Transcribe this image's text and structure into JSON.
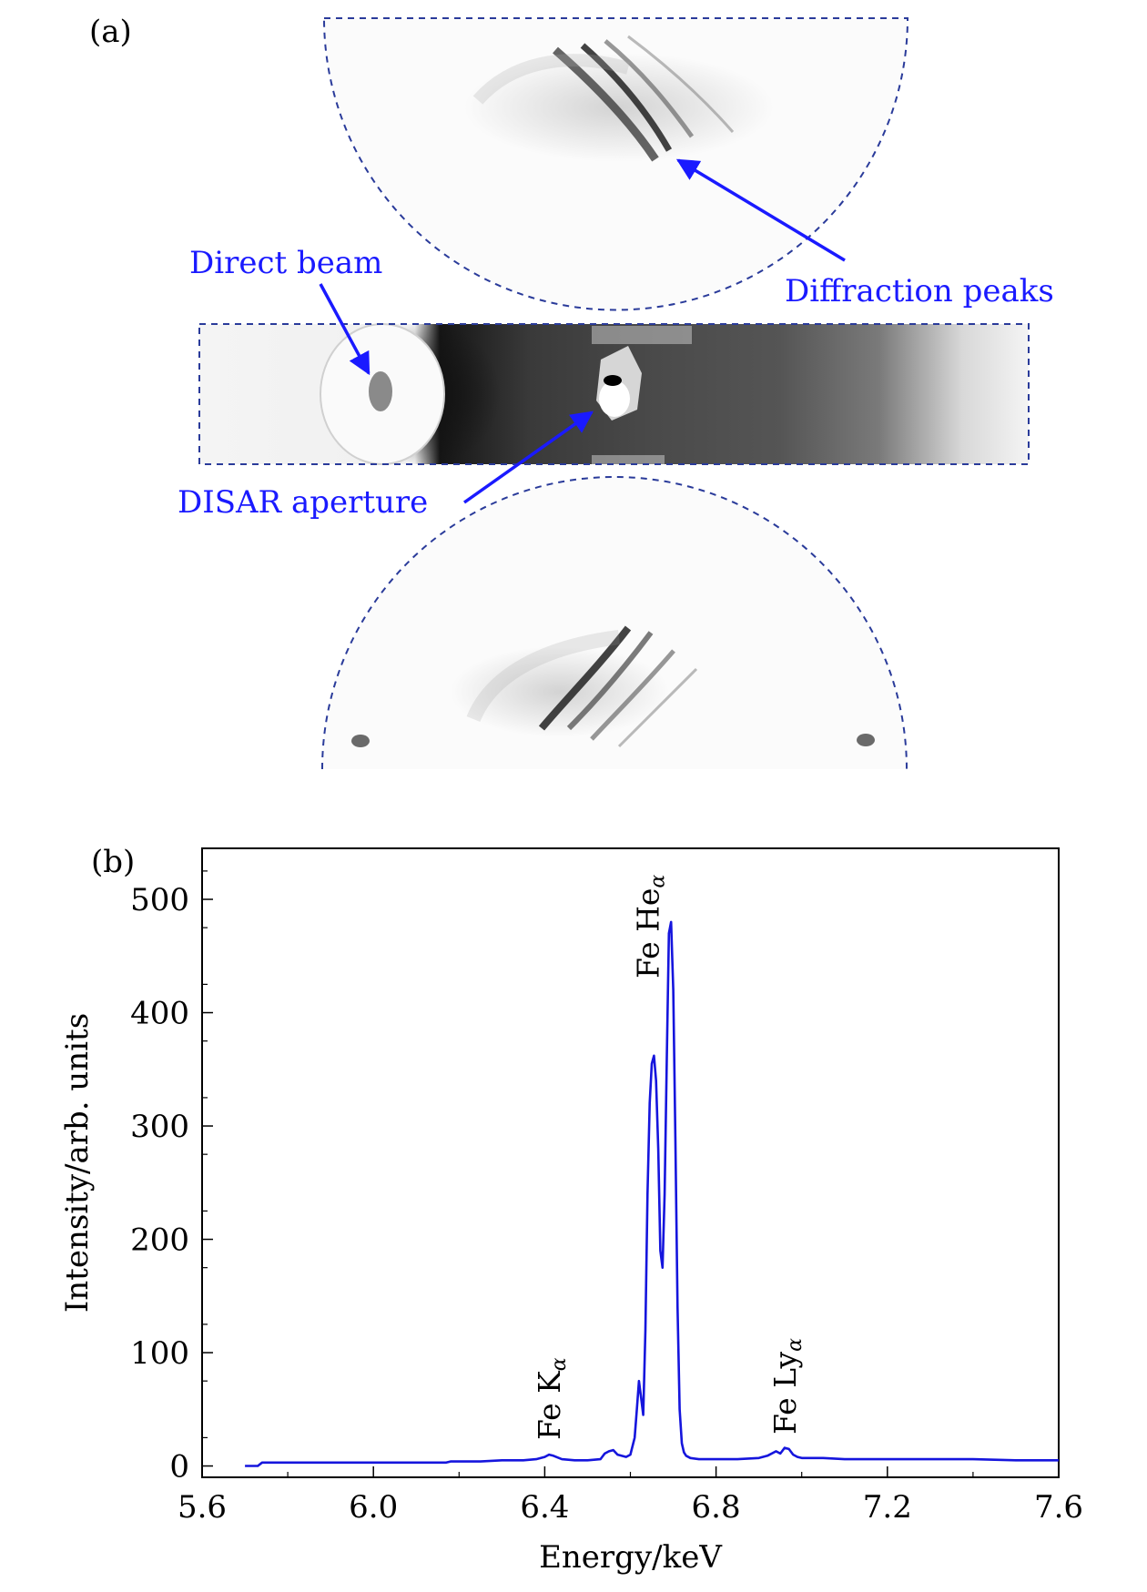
{
  "panel_a": {
    "label": "(a)",
    "annotations": {
      "direct_beam": "Direct beam",
      "diffraction_peaks": "Diffraction peaks",
      "disar_aperture": "DISAR aperture"
    },
    "annotation_color": "#1a1aff",
    "outline_color": "#2a3b9a"
  },
  "panel_b": {
    "label": "(b)",
    "peak_labels": {
      "fe_ka": {
        "main": "Fe K",
        "sub": "α"
      },
      "fe_hea": {
        "main": "Fe He",
        "sub": "α"
      },
      "fe_lya": {
        "main": "Fe Ly",
        "sub": "α"
      }
    }
  },
  "chart_data": {
    "type": "line",
    "title": "",
    "xlabel": "Energy/keV",
    "ylabel": "Intensity/arb. units",
    "xlim": [
      5.6,
      7.6
    ],
    "ylim": [
      -10,
      545
    ],
    "xticks": [
      5.6,
      6.0,
      6.4,
      6.8,
      7.2,
      7.6
    ],
    "xtick_labels": [
      "5.6",
      "6.0",
      "6.4",
      "6.8",
      "7.2",
      "7.6"
    ],
    "yticks": [
      0,
      100,
      200,
      300,
      400,
      500
    ],
    "ytick_labels": [
      "0",
      "100",
      "200",
      "300",
      "400",
      "500"
    ],
    "line_color": "#1515dd",
    "series": [
      {
        "name": "spectrum",
        "x": [
          5.7,
          5.73,
          5.74,
          5.8,
          5.9,
          6.0,
          6.1,
          6.17,
          6.18,
          6.19,
          6.25,
          6.3,
          6.35,
          6.38,
          6.4,
          6.41,
          6.42,
          6.44,
          6.47,
          6.5,
          6.53,
          6.54,
          6.55,
          6.56,
          6.57,
          6.59,
          6.6,
          6.61,
          6.615,
          6.62,
          6.625,
          6.63,
          6.635,
          6.64,
          6.645,
          6.65,
          6.655,
          6.66,
          6.665,
          6.67,
          6.675,
          6.68,
          6.685,
          6.69,
          6.695,
          6.7,
          6.705,
          6.71,
          6.715,
          6.72,
          6.725,
          6.73,
          6.74,
          6.76,
          6.8,
          6.85,
          6.9,
          6.92,
          6.94,
          6.95,
          6.96,
          6.97,
          6.98,
          6.99,
          7.0,
          7.05,
          7.1,
          7.2,
          7.3,
          7.4,
          7.5,
          7.6
        ],
        "y": [
          0,
          0,
          3,
          3,
          3,
          3,
          3,
          3,
          4,
          4,
          4,
          5,
          5,
          6,
          8,
          10,
          9,
          6,
          5,
          5,
          6,
          11,
          13,
          14,
          10,
          8,
          10,
          25,
          50,
          75,
          60,
          45,
          120,
          240,
          320,
          355,
          362,
          340,
          280,
          190,
          175,
          240,
          360,
          470,
          480,
          420,
          290,
          140,
          50,
          20,
          12,
          9,
          7,
          6,
          6,
          6,
          7,
          9,
          13,
          11,
          16,
          15,
          10,
          8,
          7,
          7,
          6,
          6,
          6,
          6,
          5,
          5
        ]
      }
    ]
  }
}
